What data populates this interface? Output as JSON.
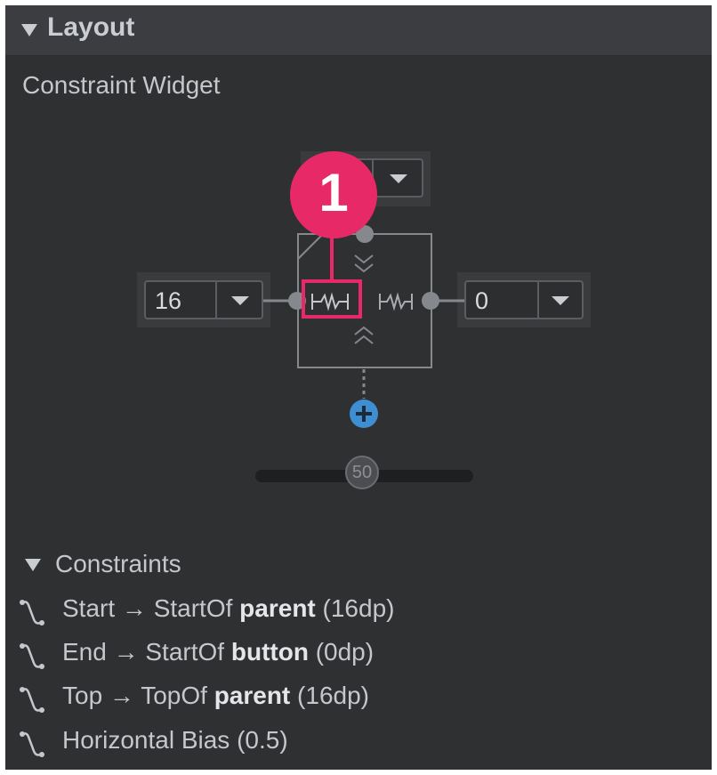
{
  "layout_section": {
    "title": "Layout",
    "widget_label": "Constraint Widget"
  },
  "widget": {
    "left_margin": "16",
    "right_margin": "0",
    "top_margin": "",
    "horizontal_bias": "50",
    "callout_number": "1"
  },
  "constraints": {
    "header": "Constraints",
    "items": [
      {
        "prefix": "Start → StartOf ",
        "target": "parent",
        "suffix": " (16dp)"
      },
      {
        "prefix": "End → StartOf ",
        "target": "button",
        "suffix": " (0dp)"
      },
      {
        "prefix": "Top → TopOf ",
        "target": "parent",
        "suffix": " (16dp)"
      },
      {
        "prefix": "Horizontal Bias ",
        "target": "",
        "suffix": " (0.5)"
      }
    ]
  },
  "colors": {
    "panel_bg": "#2f3032",
    "accent_callout": "#e72a67",
    "add_constraint_blue": "#3d8fd1"
  }
}
